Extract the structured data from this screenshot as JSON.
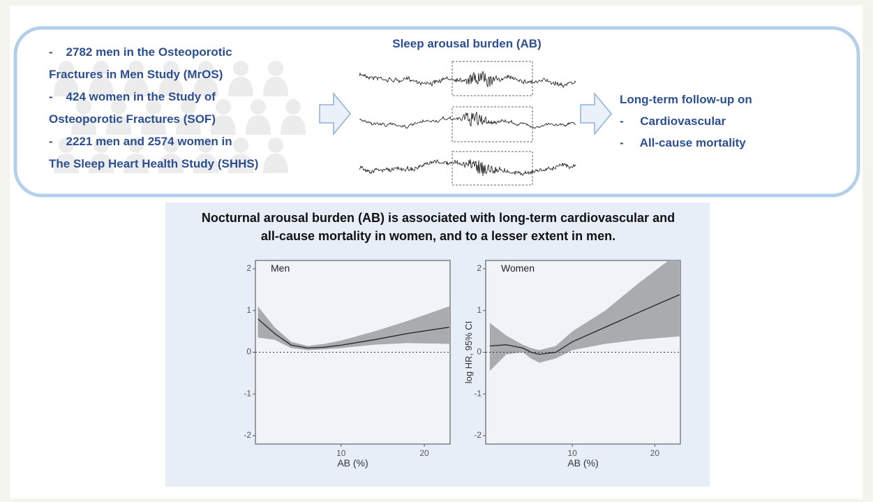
{
  "cohort_lines": [
    "-    2782 men in the Osteoporotic",
    "Fractures in Men Study (MrOS)",
    "-    424 women in the Study of",
    "Osteoporotic Fractures (SOF)",
    "-    2221 men and 2574 women in",
    "The Sleep Heart Health Study (SHHS)"
  ],
  "signal_title": "Sleep arousal burden (AB)",
  "outcome_lines": [
    "Long-term follow-up on",
    "-     Cardiovascular",
    "-     All-cause mortality"
  ],
  "plot_title_lines": [
    "Nocturnal arousal burden (AB) is associated with long-term cardiovascular and",
    "all-cause mortality in women, and to a lesser extent in men."
  ],
  "chart_data": [
    {
      "type": "line",
      "title": "Men",
      "xlabel": "AB (%)",
      "x": [
        0,
        2,
        4,
        6,
        8,
        10,
        14,
        18,
        23
      ],
      "series": [
        {
          "color": "#222222",
          "band_color": "#a9abae",
          "values": [
            0.8,
            0.45,
            0.17,
            0.1,
            0.12,
            0.17,
            0.3,
            0.45,
            0.6
          ],
          "lower": [
            0.35,
            0.3,
            0.1,
            0.05,
            0.07,
            0.1,
            0.18,
            0.22,
            0.2
          ],
          "upper": [
            1.1,
            0.6,
            0.25,
            0.15,
            0.2,
            0.28,
            0.5,
            0.75,
            1.1
          ]
        }
      ],
      "xlim": [
        -0.3,
        23.1
      ],
      "ylim": [
        -2.2,
        2.2
      ],
      "xticks": [
        10,
        20
      ],
      "yticks": [
        -2,
        -1,
        0,
        1,
        2
      ],
      "reference_line": 0
    },
    {
      "type": "line",
      "title": "Women",
      "xlabel": "AB (%)",
      "ylabel": "log HR, 95% CI",
      "x": [
        0,
        2,
        4,
        5,
        6,
        8,
        10,
        14,
        18,
        23
      ],
      "series": [
        {
          "color": "#222222",
          "band_color": "#a9abae",
          "values": [
            0.15,
            0.18,
            0.1,
            0,
            -0.05,
            0,
            0.25,
            0.6,
            0.95,
            1.38
          ],
          "lower": [
            -0.45,
            -0.05,
            0,
            -0.15,
            -0.25,
            -0.15,
            0.05,
            0.2,
            0.3,
            0.38
          ],
          "upper": [
            0.7,
            0.4,
            0.18,
            0.1,
            0.05,
            0.15,
            0.5,
            1.0,
            1.65,
            2.4
          ]
        }
      ],
      "xlim": [
        -0.5,
        23.1
      ],
      "ylim": [
        -2.2,
        2.2
      ],
      "xticks": [
        10,
        20
      ],
      "yticks": [
        -2,
        -1,
        0,
        1,
        2
      ],
      "reference_line": 0
    }
  ]
}
